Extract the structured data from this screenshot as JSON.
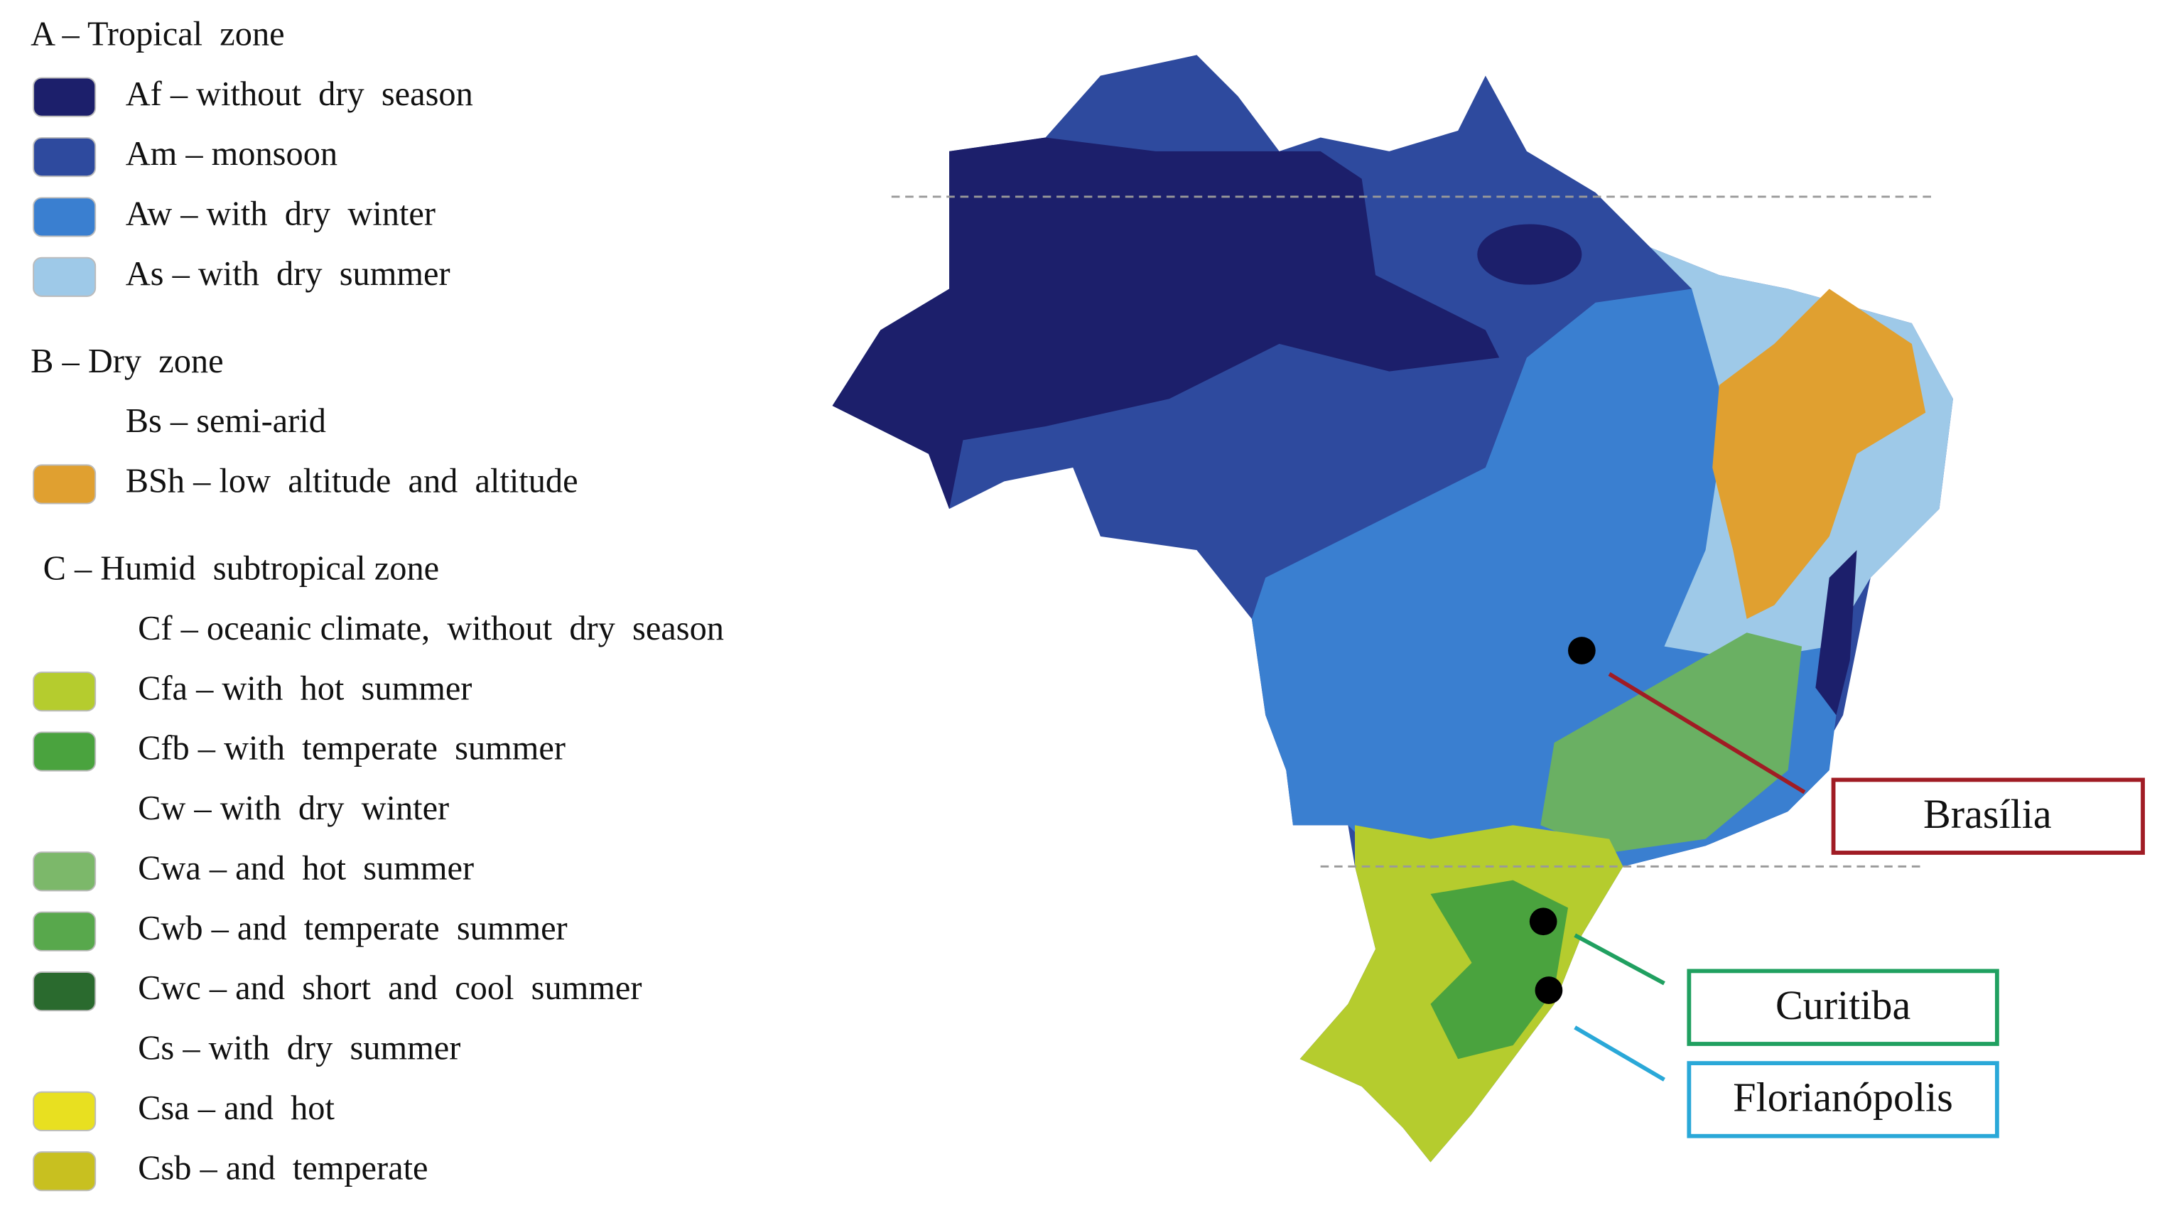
{
  "legend": [
    {
      "heading": "A – Tropical  zone",
      "items": [
        {
          "label": "Af – without  dry  season",
          "color": "#1c1f6b"
        },
        {
          "label": "Am – monsoon",
          "color": "#2e4a9e"
        },
        {
          "label": "Aw – with  dry  winter",
          "color": "#3a7fd0"
        },
        {
          "label": "As – with  dry  summer",
          "color": "#9ec9e8"
        }
      ]
    },
    {
      "heading": "B – Dry  zone",
      "items": [
        {
          "label": "Bs – semi-arid"
        },
        {
          "label": "BSh – low  altitude  and  altitude",
          "color": "#e0a030"
        }
      ]
    },
    {
      "heading": "C – Humid  subtropical zone",
      "items": [
        {
          "label": "Cf – oceanic climate,  without  dry  season"
        },
        {
          "label": "Cfa – with  hot  summer",
          "color": "#b5cc2e"
        },
        {
          "label": "Cfb – with  temperate  summer",
          "color": "#4aa33e"
        },
        {
          "label": "Cw – with  dry  winter"
        },
        {
          "label": "Cwa – and  hot  summer",
          "color": "#7cb86a"
        },
        {
          "label": "Cwb – and  temperate  summer",
          "color": "#58a84c"
        },
        {
          "label": "Cwc – and  short  and  cool  summer",
          "color": "#2a6a2e"
        },
        {
          "label": "Cs – with  dry  summer"
        },
        {
          "label": "Csa – and  hot",
          "color": "#e8e020"
        },
        {
          "label": "Csb – and  temperate",
          "color": "#c8c020"
        }
      ]
    }
  ],
  "cities": [
    "Brasília",
    "Curitiba",
    "Florianópolis"
  ]
}
